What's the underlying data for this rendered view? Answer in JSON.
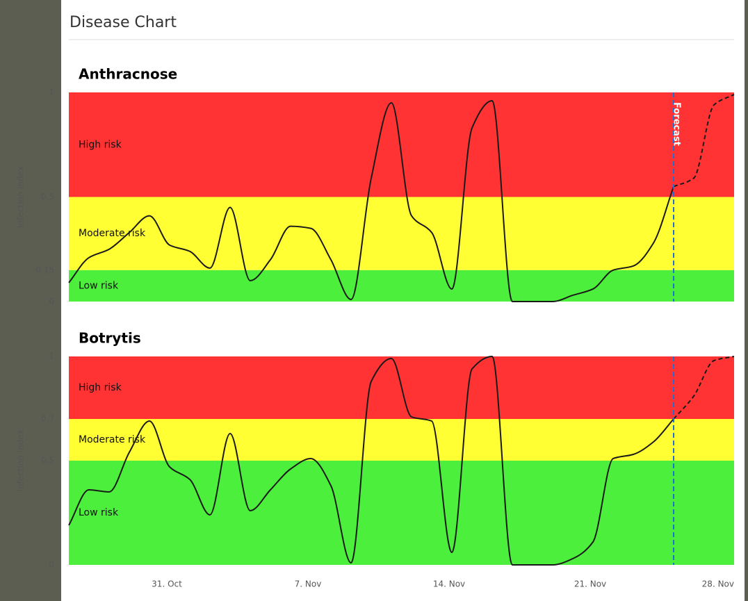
{
  "header": {
    "title": "Disease Chart"
  },
  "chart_data": [
    {
      "type": "line",
      "title": "Anthracnose",
      "ylabel": "Infection index",
      "ylim": [
        0,
        1
      ],
      "yticks": [
        0,
        0.15,
        0.5,
        1
      ],
      "bands": [
        {
          "from": 0.5,
          "to": 1,
          "label": "High risk",
          "color": "#ff3333"
        },
        {
          "from": 0.15,
          "to": 0.5,
          "label": "Moderate risk",
          "color": "#ffff33"
        },
        {
          "from": 0,
          "to": 0.15,
          "label": "Low risk",
          "color": "#4cef3c"
        }
      ],
      "plot_line": {
        "label": "Forecast",
        "color": "#1f6fd6"
      },
      "series": [
        {
          "color": "#1a1a1a",
          "values": [
            0.09,
            0.21,
            0.25,
            0.33,
            0.41,
            0.27,
            0.24,
            0.16,
            0.45,
            0.1,
            0.2,
            0.36,
            0.35,
            0.2,
            0.01,
            0.59,
            0.95,
            0.41,
            0.33,
            0.06,
            0.83,
            0.96,
            0,
            0,
            0,
            0.03,
            0.06,
            0.15,
            0.17,
            0.28,
            0.55,
            null,
            null,
            null
          ]
        },
        {
          "color": "#1a1a1a",
          "dashed": true,
          "values": [
            null,
            null,
            null,
            null,
            null,
            null,
            null,
            null,
            null,
            null,
            null,
            null,
            null,
            null,
            null,
            null,
            null,
            null,
            null,
            null,
            null,
            null,
            null,
            null,
            null,
            null,
            null,
            null,
            null,
            null,
            0.55,
            0.59,
            0.94,
            0.99
          ]
        }
      ]
    },
    {
      "type": "line",
      "title": "Botrytis",
      "ylabel": "Infection index",
      "ylim": [
        0,
        1
      ],
      "yticks": [
        0,
        0.5,
        0.7,
        1
      ],
      "bands": [
        {
          "from": 0.7,
          "to": 1,
          "label": "High risk",
          "color": "#ff3333"
        },
        {
          "from": 0.5,
          "to": 0.7,
          "label": "Moderate risk",
          "color": "#ffff33"
        },
        {
          "from": 0,
          "to": 0.5,
          "label": "Low risk",
          "color": "#4cef3c"
        }
      ],
      "plot_line": {
        "color": "#1f6fd6"
      },
      "categories": [
        null,
        null,
        null,
        null,
        null,
        "31. Oct",
        null,
        null,
        null,
        null,
        null,
        null,
        "7. Nov",
        null,
        null,
        null,
        null,
        null,
        null,
        "14. Nov",
        null,
        null,
        null,
        null,
        null,
        null,
        "21. Nov",
        null,
        null,
        null,
        null,
        null,
        null,
        "28. Nov"
      ],
      "series": [
        {
          "color": "#1a1a1a",
          "values": [
            0.19,
            0.36,
            0.35,
            0.54,
            0.69,
            0.47,
            0.41,
            0.24,
            0.63,
            0.26,
            0.36,
            0.46,
            0.51,
            0.38,
            0.01,
            0.88,
            0.99,
            0.71,
            0.69,
            0.06,
            0.94,
            1,
            0,
            0,
            0,
            0.03,
            0.11,
            0.51,
            0.53,
            0.59,
            0.7,
            null,
            null,
            null
          ]
        },
        {
          "color": "#1a1a1a",
          "dashed": true,
          "values": [
            null,
            null,
            null,
            null,
            null,
            null,
            null,
            null,
            null,
            null,
            null,
            null,
            null,
            null,
            null,
            null,
            null,
            null,
            null,
            null,
            null,
            null,
            null,
            null,
            null,
            null,
            null,
            null,
            null,
            null,
            0.7,
            0.81,
            0.98,
            1
          ]
        }
      ]
    }
  ]
}
